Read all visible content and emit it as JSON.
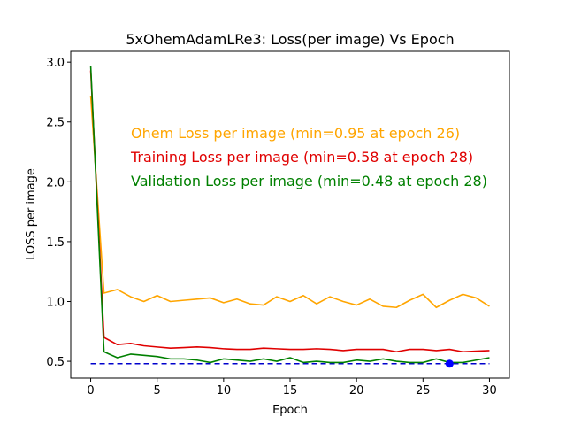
{
  "chart_data": {
    "type": "line",
    "title": "5xOhemAdamLRe3:  Loss(per image) Vs Epoch",
    "xlabel": "Epoch",
    "ylabel": "LOSS per image",
    "xlim": [
      -1.5,
      31.5
    ],
    "ylim": [
      0.36,
      3.09
    ],
    "xticks": [
      0,
      5,
      10,
      15,
      20,
      25,
      30
    ],
    "xtick_labels": [
      "0",
      "5",
      "10",
      "15",
      "20",
      "25",
      "30"
    ],
    "yticks": [
      0.5,
      1.0,
      1.5,
      2.0,
      2.5,
      3.0
    ],
    "ytick_labels": [
      "0.5",
      "1.0",
      "1.5",
      "2.0",
      "2.5",
      "3.0"
    ],
    "grid": false,
    "x": [
      0,
      1,
      2,
      3,
      4,
      5,
      6,
      7,
      8,
      9,
      10,
      11,
      12,
      13,
      14,
      15,
      16,
      17,
      18,
      19,
      20,
      21,
      22,
      23,
      24,
      25,
      26,
      27,
      28,
      29,
      30
    ],
    "series": [
      {
        "key": "ohem",
        "color": "#ffa500",
        "values": [
          2.72,
          1.07,
          1.1,
          1.04,
          1.0,
          1.05,
          1.0,
          1.01,
          1.02,
          1.03,
          0.99,
          1.02,
          0.98,
          0.97,
          1.04,
          1.0,
          1.05,
          0.98,
          1.04,
          1.0,
          0.97,
          1.02,
          0.96,
          0.95,
          1.01,
          1.06,
          0.95,
          1.01,
          1.06,
          1.03,
          0.96
        ]
      },
      {
        "key": "training",
        "color": "#e00000",
        "values": [
          2.93,
          0.7,
          0.64,
          0.65,
          0.63,
          0.62,
          0.61,
          0.615,
          0.62,
          0.615,
          0.605,
          0.6,
          0.6,
          0.61,
          0.605,
          0.6,
          0.6,
          0.605,
          0.6,
          0.59,
          0.6,
          0.6,
          0.6,
          0.58,
          0.6,
          0.6,
          0.59,
          0.6,
          0.58,
          0.585,
          0.59
        ]
      },
      {
        "key": "validation",
        "color": "#008000",
        "values": [
          2.97,
          0.58,
          0.53,
          0.56,
          0.55,
          0.54,
          0.52,
          0.52,
          0.51,
          0.49,
          0.52,
          0.51,
          0.5,
          0.52,
          0.5,
          0.53,
          0.49,
          0.5,
          0.49,
          0.49,
          0.51,
          0.5,
          0.52,
          0.5,
          0.49,
          0.49,
          0.52,
          0.49,
          0.49,
          0.51,
          0.53
        ]
      }
    ],
    "reference_line": {
      "y": 0.48,
      "color": "#0000cc",
      "style": "dashed"
    },
    "marker": {
      "x": 27,
      "y": 0.48,
      "color": "#0000ff"
    },
    "annotations": [
      {
        "key": "ohem",
        "text": "Ohem Loss per image (min=0.95 at epoch 26)",
        "color": "#ffa500"
      },
      {
        "key": "training",
        "text": "Training Loss per image (min=0.58 at epoch 28)",
        "color": "#e00000"
      },
      {
        "key": "validation",
        "text": "Validation Loss per image (min=0.48 at epoch 28)",
        "color": "#008000"
      }
    ]
  }
}
